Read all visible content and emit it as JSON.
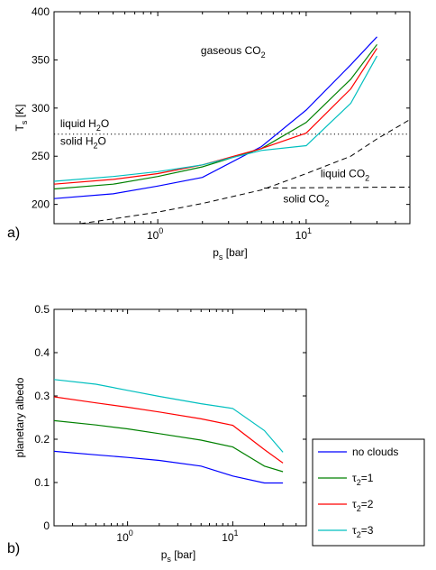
{
  "chart_data": [
    {
      "type": "line",
      "panel_label": "a)",
      "xlabel": "p",
      "xlabel_sub": "s",
      "xlabel_unit": " [bar]",
      "ylabel": "T",
      "ylabel_sub": "s",
      "ylabel_unit": " [K]",
      "xscale": "log",
      "xlim": [
        0.2,
        50
      ],
      "ylim": [
        180,
        400
      ],
      "yticks": [
        200,
        250,
        300,
        350,
        400
      ],
      "xticks": [
        {
          "base": "10",
          "exp": "0"
        },
        {
          "base": "10",
          "exp": "1"
        }
      ],
      "series": [
        {
          "color": "#0000ff",
          "x": [
            0.2,
            0.5,
            1,
            2,
            5,
            10,
            20,
            30
          ],
          "y": [
            206,
            211,
            219,
            228,
            260,
            298,
            345,
            374
          ]
        },
        {
          "color": "#008000",
          "x": [
            0.2,
            0.5,
            1,
            2,
            5,
            10,
            20,
            30
          ],
          "y": [
            216,
            221,
            229,
            239,
            258,
            285,
            330,
            366
          ]
        },
        {
          "color": "#ff0000",
          "x": [
            0.2,
            0.5,
            1,
            2,
            5,
            10,
            20,
            30
          ],
          "y": [
            221,
            226,
            232,
            241,
            258,
            274,
            320,
            362
          ]
        },
        {
          "color": "#00bfbf",
          "x": [
            0.2,
            0.5,
            1,
            2,
            5,
            10,
            20,
            30
          ],
          "y": [
            224,
            229,
            234,
            241,
            256,
            261,
            305,
            354
          ]
        }
      ],
      "reference_lines": [
        {
          "style": "dotted",
          "x": [
            0.2,
            50
          ],
          "y": [
            273,
            273
          ]
        },
        {
          "style": "dashed",
          "x": [
            0.3,
            0.5,
            1,
            2,
            5,
            10,
            20,
            30,
            50
          ],
          "y": [
            180,
            185,
            192,
            201,
            215,
            232,
            250,
            268,
            288
          ]
        },
        {
          "style": "dashed",
          "x": [
            5.2,
            50
          ],
          "y": [
            217,
            218
          ]
        }
      ],
      "annotations": [
        {
          "text": "gaseous CO",
          "sub": "2",
          "x": 1.95,
          "y": 356
        },
        {
          "text": "liquid H",
          "sub": "2",
          "tail": "O",
          "x": 0.22,
          "y": 280
        },
        {
          "text": "solid H",
          "sub": "2",
          "tail": "O",
          "x": 0.22,
          "y": 262
        },
        {
          "text": "liquid CO",
          "sub": "2",
          "x": 12.5,
          "y": 228
        },
        {
          "text": "solid CO",
          "sub": "2",
          "x": 7.0,
          "y": 202
        }
      ]
    },
    {
      "type": "line",
      "panel_label": "b)",
      "xlabel": "p",
      "xlabel_sub": "s",
      "xlabel_unit": " [bar]",
      "ylabel": "planetary albedo",
      "xscale": "log",
      "xlim": [
        0.2,
        50
      ],
      "ylim": [
        0,
        0.5
      ],
      "yticks": [
        "0",
        "0.1",
        "0.2",
        "0.3",
        "0.4",
        "0.5"
      ],
      "xticks": [
        {
          "base": "10",
          "exp": "0"
        },
        {
          "base": "10",
          "exp": "1"
        }
      ],
      "legend_position": "outside right",
      "series": [
        {
          "name": "no clouds",
          "color": "#0000ff",
          "x": [
            0.2,
            0.5,
            1,
            2,
            5,
            10,
            20,
            30
          ],
          "y": [
            0.172,
            0.164,
            0.158,
            0.151,
            0.138,
            0.115,
            0.099,
            0.099
          ]
        },
        {
          "name": "τ",
          "name_sub": "2",
          "name_tail": "=1",
          "color": "#008000",
          "x": [
            0.2,
            0.5,
            1,
            2,
            5,
            10,
            20,
            30
          ],
          "y": [
            0.243,
            0.233,
            0.224,
            0.213,
            0.198,
            0.182,
            0.138,
            0.125
          ]
        },
        {
          "name": "τ",
          "name_sub": "2",
          "name_tail": "=2",
          "color": "#ff0000",
          "x": [
            0.2,
            0.5,
            1,
            2,
            5,
            10,
            20,
            30
          ],
          "y": [
            0.298,
            0.284,
            0.274,
            0.263,
            0.247,
            0.232,
            0.176,
            0.145
          ]
        },
        {
          "name": "τ",
          "name_sub": "2",
          "name_tail": "=3",
          "color": "#00bfbf",
          "x": [
            0.2,
            0.5,
            1,
            2,
            5,
            10,
            20,
            30
          ],
          "y": [
            0.338,
            0.327,
            0.313,
            0.299,
            0.282,
            0.271,
            0.22,
            0.17
          ]
        }
      ]
    }
  ]
}
